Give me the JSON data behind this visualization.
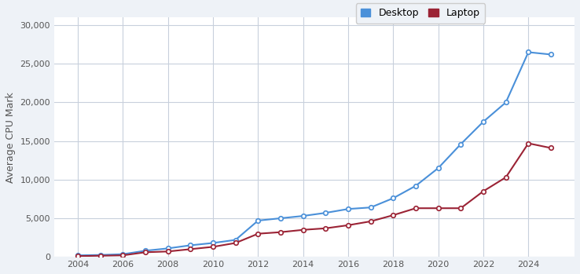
{
  "years_desktop": [
    2004,
    2005,
    2006,
    2007,
    2008,
    2009,
    2010,
    2011,
    2012,
    2013,
    2014,
    2015,
    2016,
    2017,
    2018,
    2019,
    2020,
    2021,
    2022,
    2023,
    2024,
    2025
  ],
  "desktop": [
    200,
    250,
    350,
    800,
    1100,
    1500,
    1800,
    2200,
    4700,
    5000,
    5300,
    5700,
    6200,
    6400,
    7600,
    9200,
    11500,
    14600,
    17500,
    20000,
    26500,
    26200
  ],
  "years_laptop": [
    2004,
    2005,
    2006,
    2007,
    2008,
    2009,
    2010,
    2011,
    2012,
    2013,
    2014,
    2015,
    2016,
    2017,
    2018,
    2019,
    2020,
    2021,
    2022,
    2023,
    2024,
    2025
  ],
  "laptop": [
    100,
    150,
    200,
    600,
    700,
    1000,
    1300,
    1800,
    3000,
    3200,
    3500,
    3700,
    4100,
    4600,
    5400,
    6300,
    6300,
    6300,
    8500,
    10300,
    14700,
    14100
  ],
  "desktop_color": "#4a90d9",
  "laptop_color": "#9b2335",
  "ylabel": "Average CPU Mark",
  "ylim": [
    0,
    31000
  ],
  "yticks": [
    0,
    5000,
    10000,
    15000,
    20000,
    25000,
    30000
  ],
  "xticks": [
    2004,
    2006,
    2008,
    2010,
    2012,
    2014,
    2016,
    2018,
    2020,
    2022,
    2024
  ],
  "background_color": "#eef2f7",
  "plot_bg_color": "#ffffff",
  "grid_color": "#c8d0dc",
  "legend_desktop": "Desktop",
  "legend_laptop": "Laptop",
  "marker": "o",
  "marker_size": 4,
  "linewidth": 1.5
}
